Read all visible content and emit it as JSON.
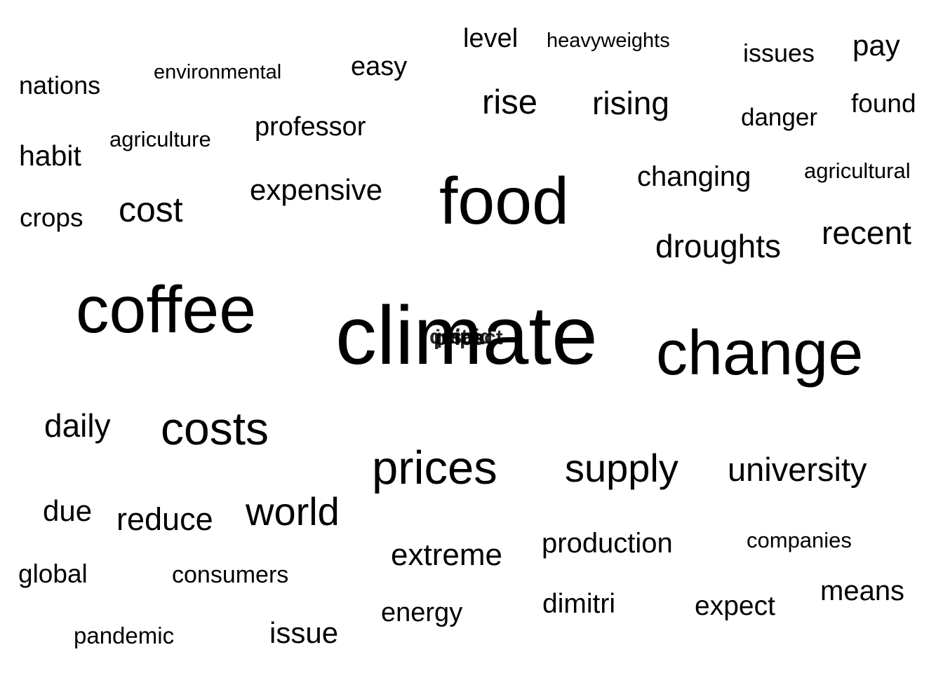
{
  "words": [
    {
      "text": "level"
    },
    {
      "text": "heavyweights"
    },
    {
      "text": "issues"
    },
    {
      "text": "pay"
    },
    {
      "text": "environmental"
    },
    {
      "text": "easy"
    },
    {
      "text": "nations"
    },
    {
      "text": "rise"
    },
    {
      "text": "rising"
    },
    {
      "text": "found"
    },
    {
      "text": "danger"
    },
    {
      "text": "professor"
    },
    {
      "text": "agriculture"
    },
    {
      "text": "habit"
    },
    {
      "text": "changing"
    },
    {
      "text": "agricultural"
    },
    {
      "text": "expensive"
    },
    {
      "text": "food"
    },
    {
      "text": "cost"
    },
    {
      "text": "crops"
    },
    {
      "text": "recent"
    },
    {
      "text": "droughts"
    },
    {
      "text": "coffee"
    },
    {
      "text": "climate"
    },
    {
      "text": "change"
    },
    {
      "text": "daily"
    },
    {
      "text": "costs"
    },
    {
      "text": "prices"
    },
    {
      "text": "supply"
    },
    {
      "text": "university"
    },
    {
      "text": "due"
    },
    {
      "text": "reduce"
    },
    {
      "text": "world"
    },
    {
      "text": "production"
    },
    {
      "text": "companies"
    },
    {
      "text": "extreme"
    },
    {
      "text": "global"
    },
    {
      "text": "consumers"
    },
    {
      "text": "means"
    },
    {
      "text": "dimitri"
    },
    {
      "text": "expect"
    },
    {
      "text": "energy"
    },
    {
      "text": "pandemic"
    },
    {
      "text": "issue"
    }
  ],
  "overlap_cluster": {
    "words": [
      "quite",
      "price",
      "said",
      "impact"
    ]
  }
}
